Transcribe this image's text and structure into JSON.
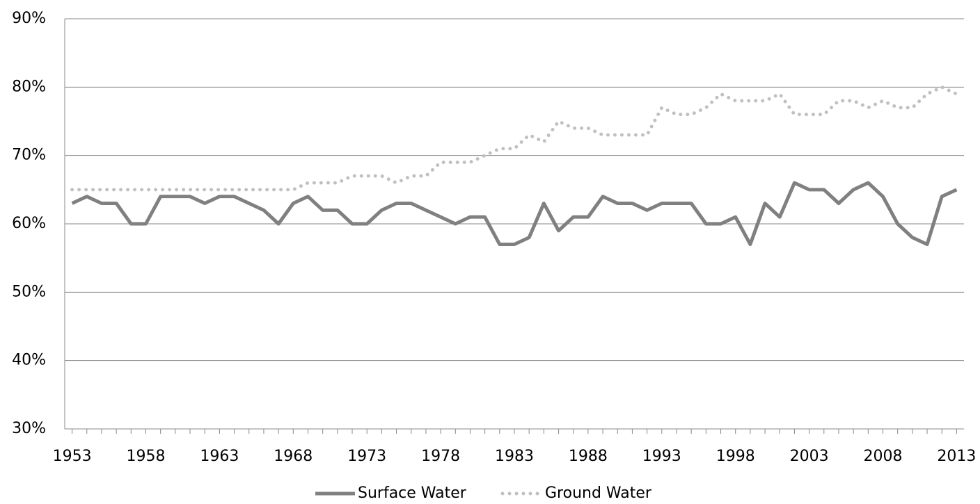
{
  "chart_data": {
    "type": "line",
    "x": [
      1953,
      1954,
      1955,
      1956,
      1957,
      1958,
      1959,
      1960,
      1961,
      1962,
      1963,
      1964,
      1965,
      1966,
      1967,
      1968,
      1969,
      1970,
      1971,
      1972,
      1973,
      1974,
      1975,
      1976,
      1977,
      1978,
      1979,
      1980,
      1981,
      1982,
      1983,
      1984,
      1985,
      1986,
      1987,
      1988,
      1989,
      1990,
      1991,
      1992,
      1993,
      1994,
      1995,
      1996,
      1997,
      1998,
      1999,
      2000,
      2001,
      2002,
      2003,
      2004,
      2005,
      2006,
      2007,
      2008,
      2009,
      2010,
      2011,
      2012,
      2013
    ],
    "xlim": [
      1952.5,
      2013.5
    ],
    "xticks": [
      1953,
      1958,
      1963,
      1968,
      1973,
      1978,
      1983,
      1988,
      1993,
      1998,
      2003,
      2008,
      2013
    ],
    "ylim": [
      30,
      90
    ],
    "yticks": [
      {
        "value": 30,
        "label": "30%"
      },
      {
        "value": 40,
        "label": "40%"
      },
      {
        "value": 50,
        "label": "50%"
      },
      {
        "value": 60,
        "label": "60%"
      },
      {
        "value": 70,
        "label": "70%"
      },
      {
        "value": 80,
        "label": "80%"
      },
      {
        "value": 90,
        "label": "90%"
      }
    ],
    "grid": true,
    "legend": "bottom",
    "series": [
      {
        "name": "Surface Water",
        "color": "#808080",
        "line_style": "solid",
        "values": [
          63,
          64,
          63,
          63,
          60,
          60,
          64,
          64,
          64,
          63,
          64,
          64,
          63,
          62,
          60,
          63,
          64,
          62,
          62,
          60,
          60,
          62,
          63,
          63,
          62,
          61,
          60,
          61,
          61,
          57,
          57,
          58,
          63,
          59,
          61,
          61,
          64,
          63,
          63,
          62,
          63,
          63,
          63,
          60,
          60,
          61,
          57,
          63,
          61,
          66,
          65,
          65,
          63,
          65,
          66,
          64,
          60,
          58,
          57,
          64,
          65
        ]
      },
      {
        "name": "Ground Water",
        "color": "#c0c0c0",
        "line_style": "dotted",
        "values": [
          65,
          65,
          65,
          65,
          65,
          65,
          65,
          65,
          65,
          65,
          65,
          65,
          65,
          65,
          65,
          65,
          66,
          66,
          66,
          67,
          67,
          67,
          66,
          67,
          67,
          69,
          69,
          69,
          70,
          71,
          71,
          73,
          72,
          75,
          74,
          74,
          73,
          73,
          73,
          73,
          77,
          76,
          76,
          77,
          79,
          78,
          78,
          78,
          79,
          76,
          76,
          76,
          78,
          78,
          77,
          78,
          77,
          77,
          79,
          80,
          79
        ]
      }
    ]
  }
}
